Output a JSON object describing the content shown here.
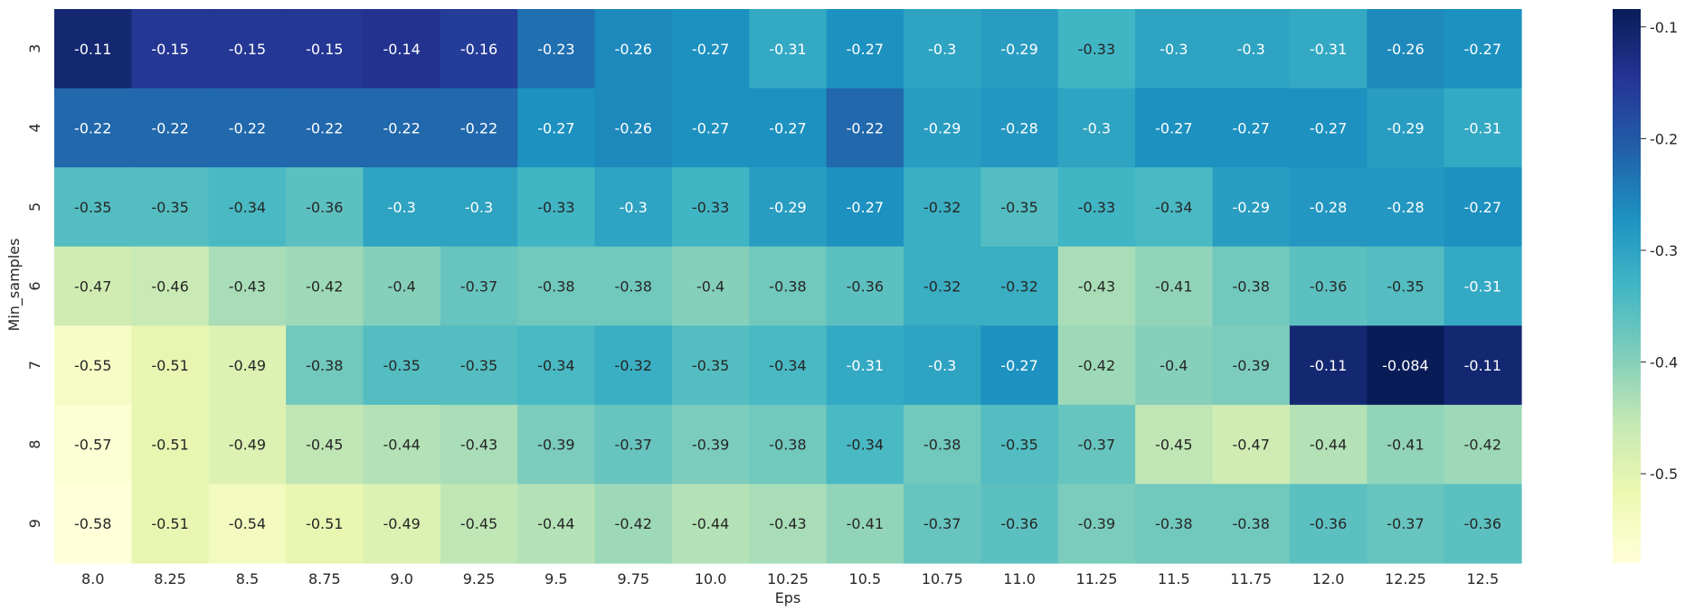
{
  "chart_data": {
    "type": "heatmap",
    "xlabel": "Eps",
    "ylabel": "Min_samples",
    "x_categories": [
      "8.0",
      "8.25",
      "8.5",
      "8.75",
      "9.0",
      "9.25",
      "9.5",
      "9.75",
      "10.0",
      "10.25",
      "10.5",
      "10.75",
      "11.0",
      "11.25",
      "11.5",
      "11.75",
      "12.0",
      "12.25",
      "12.5"
    ],
    "y_categories": [
      "3",
      "4",
      "5",
      "6",
      "7",
      "8",
      "9"
    ],
    "values": [
      [
        -0.11,
        -0.15,
        -0.15,
        -0.15,
        -0.14,
        -0.16,
        -0.23,
        -0.26,
        -0.27,
        -0.31,
        -0.27,
        -0.3,
        -0.29,
        -0.33,
        -0.3,
        -0.3,
        -0.31,
        -0.26,
        -0.27
      ],
      [
        -0.22,
        -0.22,
        -0.22,
        -0.22,
        -0.22,
        -0.22,
        -0.27,
        -0.26,
        -0.27,
        -0.27,
        -0.22,
        -0.29,
        -0.28,
        -0.3,
        -0.27,
        -0.27,
        -0.27,
        -0.29,
        -0.31
      ],
      [
        -0.35,
        -0.35,
        -0.34,
        -0.36,
        -0.3,
        -0.3,
        -0.33,
        -0.3,
        -0.33,
        -0.29,
        -0.27,
        -0.32,
        -0.35,
        -0.33,
        -0.34,
        -0.29,
        -0.28,
        -0.28,
        -0.27
      ],
      [
        -0.47,
        -0.46,
        -0.43,
        -0.42,
        -0.4,
        -0.37,
        -0.38,
        -0.38,
        -0.4,
        -0.38,
        -0.36,
        -0.32,
        -0.32,
        -0.43,
        -0.41,
        -0.38,
        -0.36,
        -0.35,
        -0.31
      ],
      [
        -0.55,
        -0.51,
        -0.49,
        -0.38,
        -0.35,
        -0.35,
        -0.34,
        -0.32,
        -0.35,
        -0.34,
        -0.31,
        -0.3,
        -0.27,
        -0.42,
        -0.4,
        -0.39,
        -0.11,
        -0.084,
        -0.11
      ],
      [
        -0.57,
        -0.51,
        -0.49,
        -0.45,
        -0.44,
        -0.43,
        -0.39,
        -0.37,
        -0.39,
        -0.38,
        -0.34,
        -0.38,
        -0.35,
        -0.37,
        -0.45,
        -0.47,
        -0.44,
        -0.41,
        -0.42
      ],
      [
        -0.58,
        -0.51,
        -0.54,
        -0.51,
        -0.49,
        -0.45,
        -0.44,
        -0.42,
        -0.44,
        -0.43,
        -0.41,
        -0.37,
        -0.36,
        -0.39,
        -0.38,
        -0.38,
        -0.36,
        -0.37,
        -0.36
      ]
    ],
    "colormap": "YlGnBu",
    "colorbar": {
      "vmin": -0.58,
      "vmax": -0.084,
      "ticks": [
        -0.1,
        -0.2,
        -0.3,
        -0.4,
        -0.5
      ],
      "tick_labels": [
        "-0.1",
        "-0.2",
        "-0.3",
        "-0.4",
        "-0.5"
      ],
      "placement": "right"
    },
    "annotations": true,
    "grid": false
  }
}
